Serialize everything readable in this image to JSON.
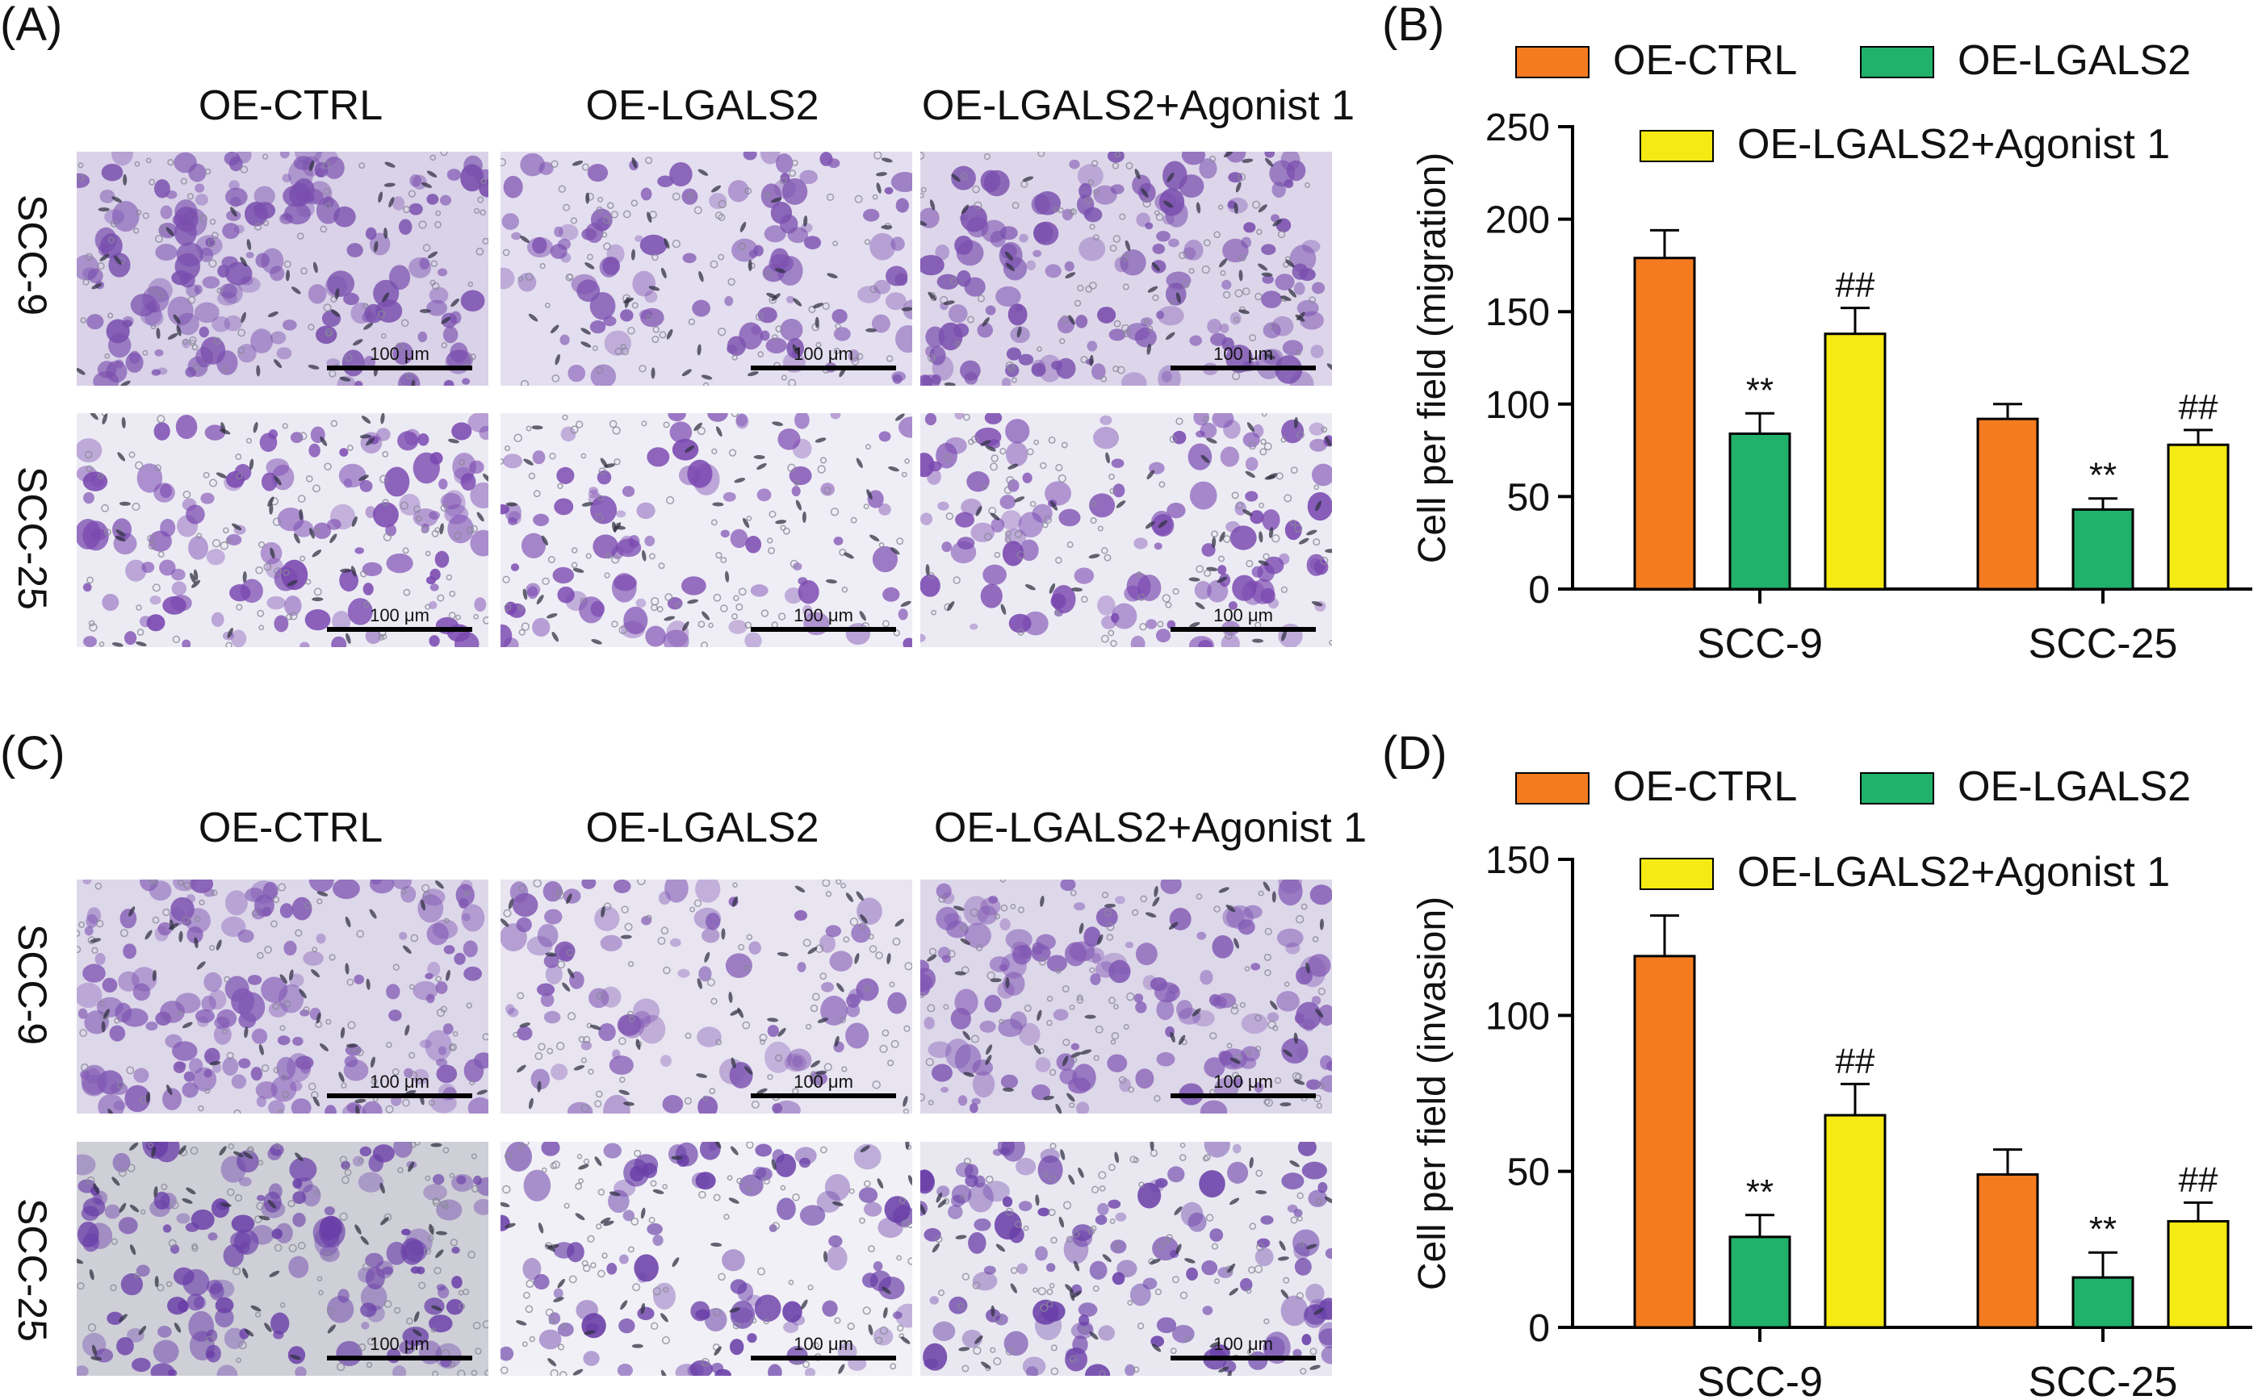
{
  "figure": {
    "panels": [
      {
        "label": "(A)",
        "assay": "migration",
        "columns": [
          "OE-CTRL",
          "OE-LGALS2",
          "OE-LGALS2+Agonist 1"
        ],
        "rows": [
          "SCC-9",
          "SCC-25"
        ],
        "scale_bar": "100 μm",
        "images": [
          {
            "row": "SCC-9",
            "column": "OE-CTRL",
            "stain": "#7a4fae",
            "bg": "#d9d2e8",
            "density": 0.95
          },
          {
            "row": "SCC-9",
            "column": "OE-LGALS2",
            "stain": "#7d52b0",
            "bg": "#e4dff0",
            "density": 0.45
          },
          {
            "row": "SCC-9",
            "column": "OE-LGALS2+Agonist 1",
            "stain": "#7a4fae",
            "bg": "#ddd6ea",
            "density": 0.8
          },
          {
            "row": "SCC-25",
            "column": "OE-CTRL",
            "stain": "#7a48b0",
            "bg": "#ecebf4",
            "density": 0.6
          },
          {
            "row": "SCC-25",
            "column": "OE-LGALS2",
            "stain": "#7a48b0",
            "bg": "#efeef6",
            "density": 0.35
          },
          {
            "row": "SCC-25",
            "column": "OE-LGALS2+Agonist 1",
            "stain": "#7a48b0",
            "bg": "#ecebf4",
            "density": 0.55
          }
        ]
      },
      {
        "label": "(C)",
        "assay": "invasion",
        "columns": [
          "OE-CTRL",
          "OE-LGALS2",
          "OE-LGALS2+Agonist 1"
        ],
        "rows": [
          "SCC-9",
          "SCC-25"
        ],
        "scale_bar": "100 μm",
        "images": [
          {
            "row": "SCC-9",
            "column": "OE-CTRL",
            "stain": "#8158b3",
            "bg": "#ddd7ea",
            "density": 0.85
          },
          {
            "row": "SCC-9",
            "column": "OE-LGALS2",
            "stain": "#8158b3",
            "bg": "#e8e5f1",
            "density": 0.3
          },
          {
            "row": "SCC-9",
            "column": "OE-LGALS2+Agonist 1",
            "stain": "#8158b3",
            "bg": "#ddd7ea",
            "density": 0.7
          },
          {
            "row": "SCC-25",
            "column": "OE-CTRL",
            "stain": "#6a3fa8",
            "bg": "#cfcfd8",
            "density": 0.75
          },
          {
            "row": "SCC-25",
            "column": "OE-LGALS2",
            "stain": "#6a3fa8",
            "bg": "#f1f0f6",
            "density": 0.4
          },
          {
            "row": "SCC-25",
            "column": "OE-LGALS2+Agonist 1",
            "stain": "#6a3fa8",
            "bg": "#e9e8f1",
            "density": 0.6
          }
        ]
      }
    ]
  },
  "chart_data": [
    {
      "panel_label": "(B)",
      "type": "bar",
      "title": "",
      "xlabel": "",
      "ylabel": "Cell per field (migration)",
      "ylim": [
        0,
        250
      ],
      "yticks": [
        0,
        50,
        100,
        150,
        200,
        250
      ],
      "categories": [
        "SCC-9",
        "SCC-25"
      ],
      "series": [
        {
          "name": "OE-CTRL",
          "color": "#f47b20",
          "values": [
            179,
            92
          ],
          "errors": [
            15,
            8
          ],
          "marks": [
            "",
            ""
          ]
        },
        {
          "name": "OE-LGALS2",
          "color": "#21b16b",
          "values": [
            84,
            43
          ],
          "errors": [
            11,
            6
          ],
          "marks": [
            "**",
            "**"
          ]
        },
        {
          "name": "OE-LGALS2+Agonist 1",
          "color": "#f5ea14",
          "values": [
            138,
            78
          ],
          "errors": [
            14,
            8
          ],
          "marks": [
            "##",
            "##"
          ]
        }
      ],
      "legend": "top"
    },
    {
      "panel_label": "(D)",
      "type": "bar",
      "title": "",
      "xlabel": "",
      "ylabel": "Cell per field (invasion)",
      "ylim": [
        0,
        150
      ],
      "yticks": [
        0,
        50,
        100,
        150
      ],
      "categories": [
        "SCC-9",
        "SCC-25"
      ],
      "series": [
        {
          "name": "OE-CTRL",
          "color": "#f47b20",
          "values": [
            119,
            49
          ],
          "errors": [
            13,
            8
          ],
          "marks": [
            "",
            ""
          ]
        },
        {
          "name": "OE-LGALS2",
          "color": "#21b16b",
          "values": [
            29,
            16
          ],
          "errors": [
            7,
            8
          ],
          "marks": [
            "**",
            "**"
          ]
        },
        {
          "name": "OE-LGALS2+Agonist 1",
          "color": "#f5ea14",
          "values": [
            68,
            34
          ],
          "errors": [
            10,
            6
          ],
          "marks": [
            "##",
            "##"
          ]
        }
      ],
      "legend": "top"
    }
  ]
}
